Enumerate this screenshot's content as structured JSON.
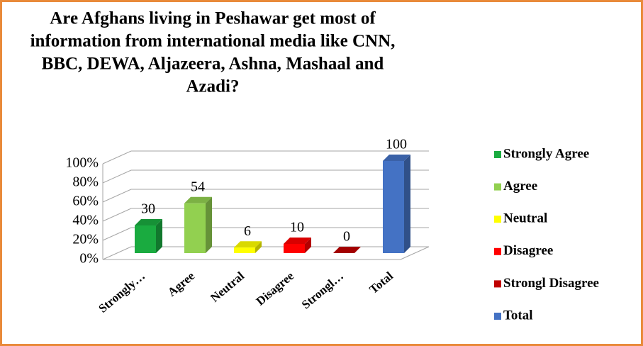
{
  "chart_data": {
    "type": "bar3d",
    "title": [
      "Are Afghans living in Peshawar get most of",
      "information from international media like CNN,",
      "BBC, DEWA, Aljazeera, Ashna, Mashaal and",
      "Azadi?"
    ],
    "categories": [
      "Strongly…",
      "Agree",
      "Neutral",
      "Disagree",
      "Strongl…",
      "Total"
    ],
    "values": [
      30,
      54,
      6,
      10,
      0,
      100
    ],
    "colors": [
      "#1aab40",
      "#92d050",
      "#ffff00",
      "#ff0000",
      "#c00000",
      "#4472c4"
    ],
    "legend": [
      "Strongly Agree",
      "Agree",
      "Neutral",
      "Disagree",
      "Strongl Disagree",
      "Total"
    ],
    "ylim": [
      0,
      100
    ],
    "yticks": [
      {
        "value": 0,
        "label": "0%"
      },
      {
        "value": 20,
        "label": "20%"
      },
      {
        "value": 40,
        "label": "40%"
      },
      {
        "value": 60,
        "label": "60%"
      },
      {
        "value": 80,
        "label": "80%"
      },
      {
        "value": 100,
        "label": "100%"
      }
    ],
    "grid": true
  }
}
